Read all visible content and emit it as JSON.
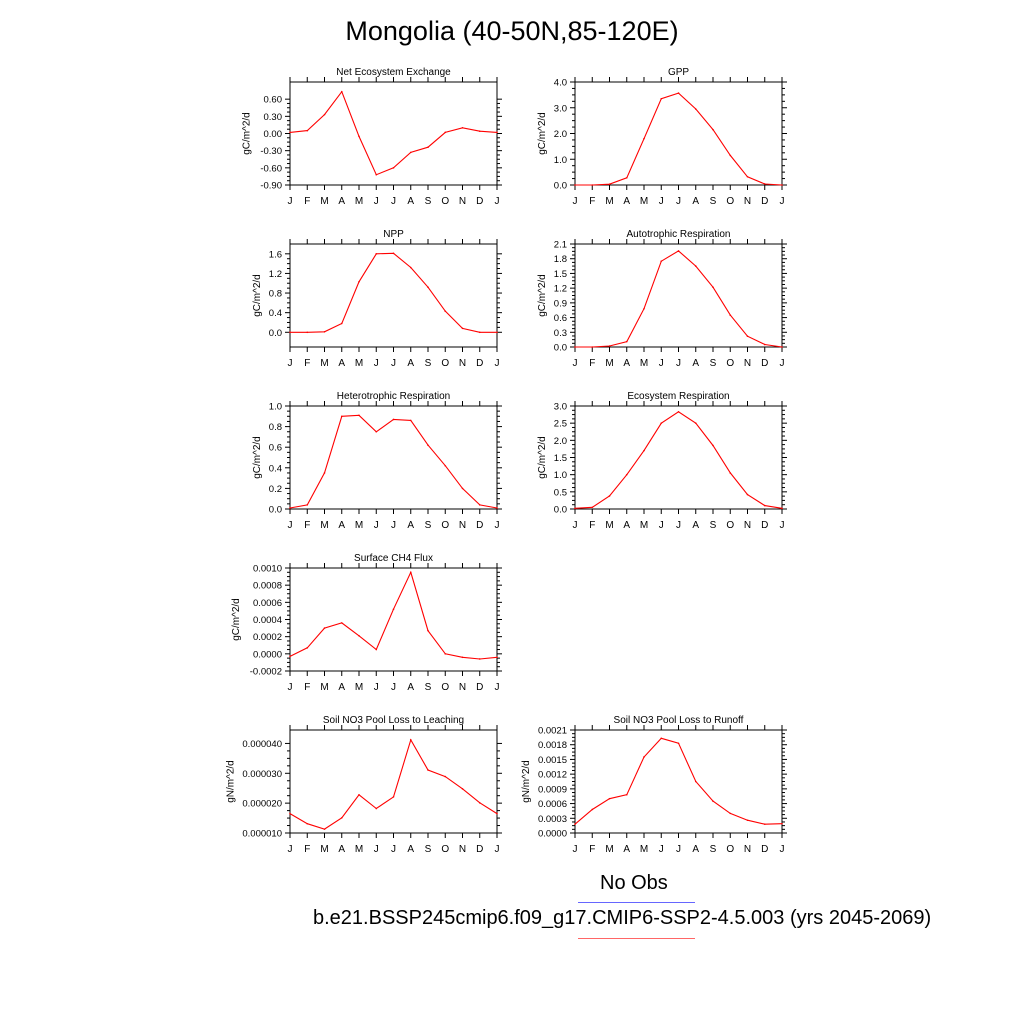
{
  "page": {
    "title": "Mongolia (40-50N,85-120E)",
    "legend": {
      "obs_label": "No Obs",
      "obs_color": "#6666ff",
      "model_label": "b.e21.BSSP245cmip6.f09_g17.CMIP6-SSP2-4.5.003 (yrs 2045-2069)",
      "model_color": "#ff6666"
    },
    "line_color": "#ff0000"
  },
  "chart_data": [
    {
      "id": "nee",
      "type": "line",
      "title": "Net Ecosystem Exchange",
      "ylabel": "gC/m^2/d",
      "categories": [
        "J",
        "F",
        "M",
        "A",
        "M",
        "J",
        "J",
        "A",
        "S",
        "O",
        "N",
        "D",
        "J"
      ],
      "ylim": [
        -0.9,
        0.9
      ],
      "yticks": [
        "-0.90",
        "-0.60",
        "-0.30",
        "0.00",
        "0.30",
        "0.60"
      ],
      "ytick_values": [
        -0.9,
        -0.6,
        -0.3,
        0,
        0.3,
        0.6
      ],
      "values": [
        0.02,
        0.05,
        0.33,
        0.73,
        -0.05,
        -0.72,
        -0.6,
        -0.33,
        -0.24,
        0.02,
        0.1,
        0.04,
        0.02
      ]
    },
    {
      "id": "gpp",
      "type": "line",
      "title": "GPP",
      "ylabel": "gC/m^2/d",
      "categories": [
        "J",
        "F",
        "M",
        "A",
        "M",
        "J",
        "J",
        "A",
        "S",
        "O",
        "N",
        "D",
        "J"
      ],
      "ylim": [
        0,
        4.0
      ],
      "yticks": [
        "0.0",
        "1.0",
        "2.0",
        "3.0",
        "4.0"
      ],
      "ytick_values": [
        0,
        1,
        2,
        3,
        4
      ],
      "values": [
        0.0,
        0.0,
        0.03,
        0.28,
        1.8,
        3.35,
        3.57,
        2.95,
        2.15,
        1.15,
        0.32,
        0.04,
        0.0
      ]
    },
    {
      "id": "npp",
      "type": "line",
      "title": "NPP",
      "ylabel": "gC/m^2/d",
      "categories": [
        "J",
        "F",
        "M",
        "A",
        "M",
        "J",
        "J",
        "A",
        "S",
        "O",
        "N",
        "D",
        "J"
      ],
      "ylim": [
        -0.3,
        1.8
      ],
      "yticks": [
        "0.0",
        "0.4",
        "0.8",
        "1.2",
        "1.6"
      ],
      "ytick_values": [
        0,
        0.4,
        0.8,
        1.2,
        1.6
      ],
      "values": [
        0.0,
        0.0,
        0.01,
        0.18,
        1.03,
        1.6,
        1.61,
        1.32,
        0.92,
        0.43,
        0.08,
        0.0,
        0.0
      ]
    },
    {
      "id": "ar",
      "type": "line",
      "title": "Autotrophic Respiration",
      "ylabel": "gC/m^2/d",
      "categories": [
        "J",
        "F",
        "M",
        "A",
        "M",
        "J",
        "J",
        "A",
        "S",
        "O",
        "N",
        "D",
        "J"
      ],
      "ylim": [
        0,
        2.1
      ],
      "yticks": [
        "0.0",
        "0.3",
        "0.6",
        "0.9",
        "1.2",
        "1.5",
        "1.8",
        "2.1"
      ],
      "ytick_values": [
        0,
        0.3,
        0.6,
        0.9,
        1.2,
        1.5,
        1.8,
        2.1
      ],
      "values": [
        0.0,
        0.0,
        0.02,
        0.11,
        0.78,
        1.75,
        1.96,
        1.65,
        1.22,
        0.65,
        0.22,
        0.05,
        0.0
      ]
    },
    {
      "id": "hr",
      "type": "line",
      "title": "Heterotrophic Respiration",
      "ylabel": "gC/m^2/d",
      "categories": [
        "J",
        "F",
        "M",
        "A",
        "M",
        "J",
        "J",
        "A",
        "S",
        "O",
        "N",
        "D",
        "J"
      ],
      "ylim": [
        0,
        1.0
      ],
      "yticks": [
        "0.0",
        "0.2",
        "0.4",
        "0.6",
        "0.8",
        "1.0"
      ],
      "ytick_values": [
        0,
        0.2,
        0.4,
        0.6,
        0.8,
        1.0
      ],
      "values": [
        0.01,
        0.04,
        0.35,
        0.9,
        0.91,
        0.75,
        0.87,
        0.86,
        0.62,
        0.42,
        0.2,
        0.04,
        0.01
      ]
    },
    {
      "id": "er",
      "type": "line",
      "title": "Ecosystem Respiration",
      "ylabel": "gC/m^2/d",
      "categories": [
        "J",
        "F",
        "M",
        "A",
        "M",
        "J",
        "J",
        "A",
        "S",
        "O",
        "N",
        "D",
        "J"
      ],
      "ylim": [
        0,
        3.0
      ],
      "yticks": [
        "0.0",
        "0.5",
        "1.0",
        "1.5",
        "2.0",
        "2.5",
        "3.0"
      ],
      "ytick_values": [
        0,
        0.5,
        1.0,
        1.5,
        2.0,
        2.5,
        3.0
      ],
      "values": [
        0.02,
        0.05,
        0.38,
        1.0,
        1.7,
        2.5,
        2.83,
        2.5,
        1.85,
        1.05,
        0.42,
        0.1,
        0.02
      ]
    },
    {
      "id": "ch4",
      "type": "line",
      "title": "Surface CH4 Flux",
      "ylabel": "gC/m^2/d",
      "categories": [
        "J",
        "F",
        "M",
        "A",
        "M",
        "J",
        "J",
        "A",
        "S",
        "O",
        "N",
        "D",
        "J"
      ],
      "ylim": [
        -0.0002,
        0.001
      ],
      "yticks": [
        "-0.0002",
        "0.0000",
        "0.0002",
        "0.0004",
        "0.0006",
        "0.0008",
        "0.0010"
      ],
      "ytick_values": [
        -0.0002,
        0,
        0.0002,
        0.0004,
        0.0006,
        0.0008,
        0.001
      ],
      "values": [
        -3e-05,
        7e-05,
        0.0003,
        0.00036,
        0.00021,
        5e-05,
        0.00052,
        0.00095,
        0.00027,
        0.0,
        -4e-05,
        -6e-05,
        -4e-05
      ]
    },
    {
      "id": "leach",
      "type": "line",
      "title": "Soil NO3 Pool Loss to Leaching",
      "ylabel": "gN/m^2/d",
      "categories": [
        "J",
        "F",
        "M",
        "A",
        "M",
        "J",
        "J",
        "A",
        "S",
        "O",
        "N",
        "D",
        "J"
      ],
      "ylim": [
        1e-05,
        4.45e-05
      ],
      "yticks": [
        "0.000010",
        "0.000020",
        "0.000030",
        "0.000040"
      ],
      "ytick_values": [
        1e-05,
        2e-05,
        3e-05,
        4e-05
      ],
      "values": [
        1.65e-05,
        1.31e-05,
        1.13e-05,
        1.51e-05,
        2.28e-05,
        1.82e-05,
        2.21e-05,
        4.12e-05,
        3.11e-05,
        2.89e-05,
        2.48e-05,
        2.01e-05,
        1.65e-05
      ]
    },
    {
      "id": "runoff",
      "type": "line",
      "title": "Soil NO3 Pool Loss to Runoff",
      "ylabel": "gN/m^2/d",
      "categories": [
        "J",
        "F",
        "M",
        "A",
        "M",
        "J",
        "J",
        "A",
        "S",
        "O",
        "N",
        "D",
        "J"
      ],
      "ylim": [
        0,
        0.0021
      ],
      "yticks": [
        "0.0000",
        "0.0003",
        "0.0006",
        "0.0009",
        "0.0012",
        "0.0015",
        "0.0018",
        "0.0021"
      ],
      "ytick_values": [
        0,
        0.0003,
        0.0006,
        0.0009,
        0.0012,
        0.0015,
        0.0018,
        0.0021
      ],
      "values": [
        0.00018,
        0.00048,
        0.0007,
        0.00078,
        0.00155,
        0.00193,
        0.00183,
        0.00105,
        0.00065,
        0.0004,
        0.00026,
        0.00018,
        0.00019
      ]
    }
  ]
}
